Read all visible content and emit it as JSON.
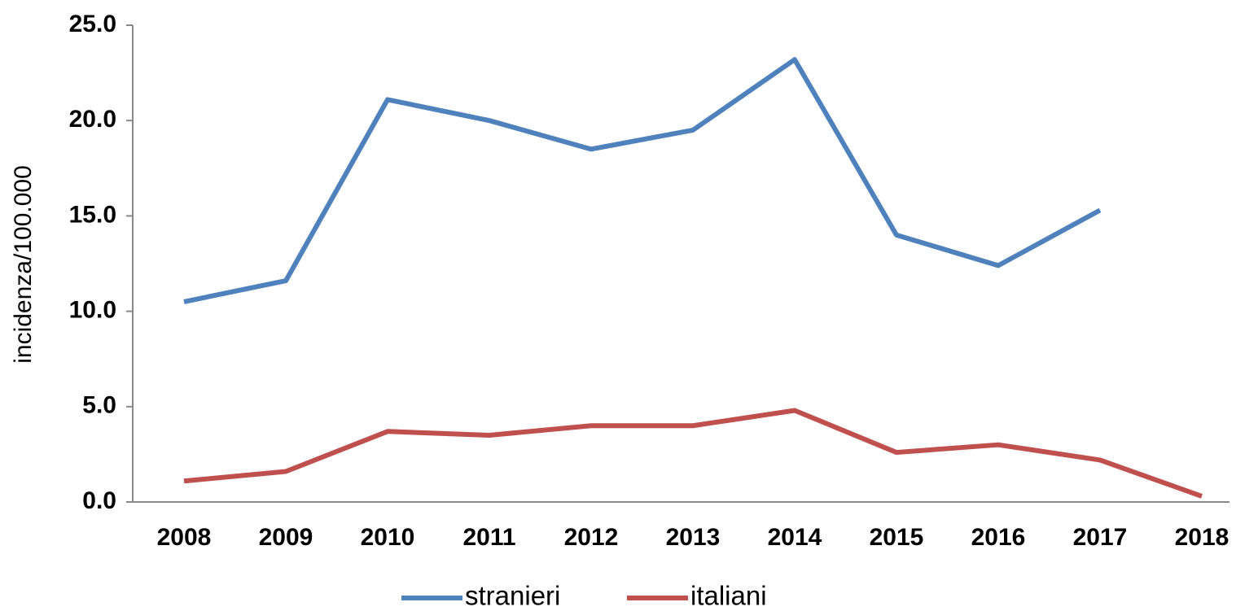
{
  "chart_data": {
    "type": "line",
    "y_label": "incidenza/100.000",
    "categories": [
      "2008",
      "2009",
      "2010",
      "2011",
      "2012",
      "2013",
      "2014",
      "2015",
      "2016",
      "2017",
      "2018"
    ],
    "series": [
      {
        "name": "stranieri",
        "color": "#4f81bd",
        "values": [
          10.5,
          11.6,
          21.1,
          20.0,
          18.5,
          19.5,
          23.2,
          14.0,
          12.4,
          15.3,
          null
        ]
      },
      {
        "name": "italiani",
        "color": "#c0504d",
        "values": [
          1.1,
          1.6,
          3.7,
          3.5,
          4.0,
          4.0,
          4.8,
          2.6,
          3.0,
          2.2,
          0.3
        ]
      }
    ],
    "ylim": [
      0,
      25
    ],
    "yticks": [
      {
        "value": 0,
        "label": "0.0"
      },
      {
        "value": 5,
        "label": "5.0"
      },
      {
        "value": 10,
        "label": "10.0"
      },
      {
        "value": 15,
        "label": "15.0"
      },
      {
        "value": 20,
        "label": "20.0"
      },
      {
        "value": 25,
        "label": "25.0"
      }
    ],
    "legend": "bottom"
  }
}
